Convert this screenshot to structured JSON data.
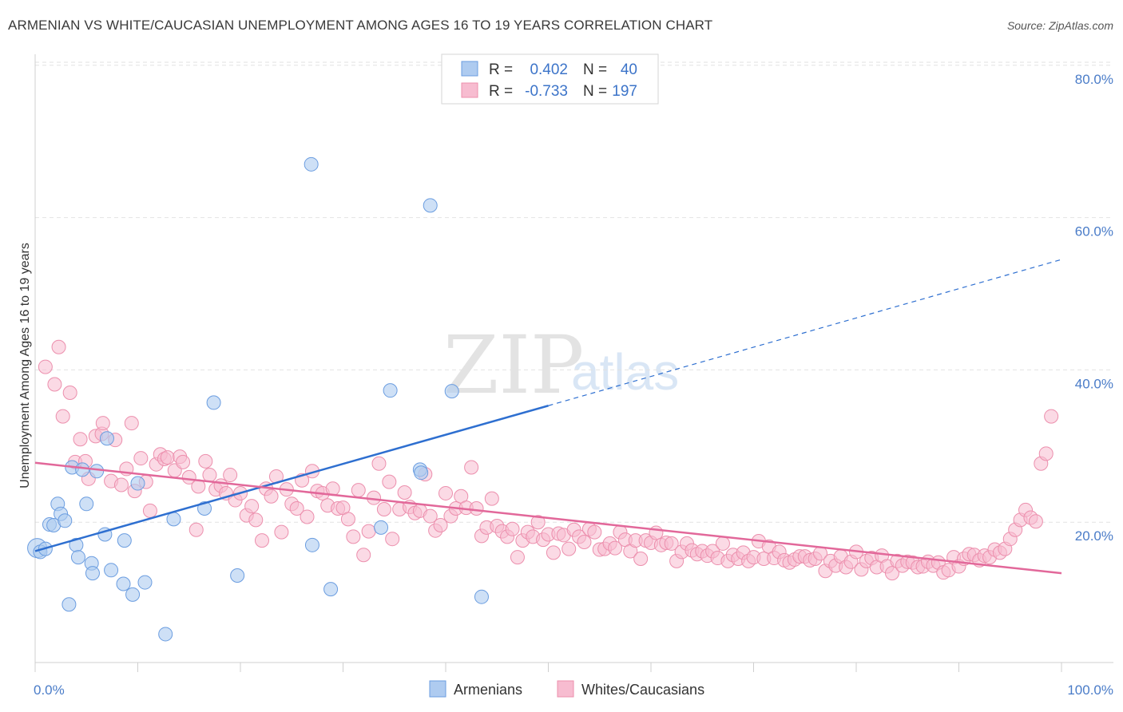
{
  "title": "ARMENIAN VS WHITE/CAUCASIAN UNEMPLOYMENT AMONG AGES 16 TO 19 YEARS CORRELATION CHART",
  "source": "Source: ZipAtlas.com",
  "watermark": {
    "zip": "ZIP",
    "atlas": "atlas"
  },
  "legend": {
    "r_label": "R =",
    "n_label": "N =",
    "armenians": {
      "r": "0.402",
      "n": "40"
    },
    "whites": {
      "r": "-0.733",
      "n": "197"
    }
  },
  "bottom_legend": {
    "armenians": "Armenians",
    "whites": "Whites/Caucasians"
  },
  "colors": {
    "armenians_fill": "#aecbf0",
    "armenians_stroke": "#6b9de0",
    "armenians_line": "#2e6fd0",
    "whites_fill": "#f7bcd0",
    "whites_stroke": "#ec8fad",
    "whites_line": "#e2689a",
    "tick_text": "#4a7cc8",
    "grid": "#e2e2e2"
  },
  "chart_data": {
    "type": "scatter",
    "title": "ARMENIAN VS WHITE/CAUCASIAN UNEMPLOYMENT AMONG AGES 16 TO 19 YEARS CORRELATION CHART",
    "xlabel": "",
    "ylabel": "Unemployment Among Ages 16 to 19 years",
    "xlim": [
      0,
      100
    ],
    "ylim": [
      0,
      85
    ],
    "x_tick_labels": [
      "0.0%",
      "100.0%"
    ],
    "y_ticks": [
      20,
      40,
      60,
      80
    ],
    "y_tick_labels": [
      "20.0%",
      "40.0%",
      "60.0%",
      "80.0%"
    ],
    "grid": true,
    "legend_placement": "top-center",
    "series": [
      {
        "name": "Armenians",
        "r": 0.402,
        "n": 40,
        "trend": {
          "x0": 0,
          "y0": 16.2,
          "x1": 50,
          "y1": 35.3,
          "dashed_to_x": 100,
          "dashed_to_y": 54.5
        },
        "points": [
          [
            0.2,
            16.6
          ],
          [
            0.5,
            16.1
          ],
          [
            1.0,
            16.5
          ],
          [
            1.4,
            19.7
          ],
          [
            1.8,
            19.6
          ],
          [
            2.2,
            22.4
          ],
          [
            2.5,
            21.1
          ],
          [
            2.9,
            20.2
          ],
          [
            3.3,
            9.2
          ],
          [
            3.6,
            27.2
          ],
          [
            4.0,
            17.0
          ],
          [
            4.2,
            15.4
          ],
          [
            4.6,
            26.9
          ],
          [
            5.0,
            22.4
          ],
          [
            5.5,
            14.6
          ],
          [
            5.6,
            13.3
          ],
          [
            6.0,
            26.7
          ],
          [
            6.8,
            18.4
          ],
          [
            7.0,
            31.0
          ],
          [
            7.4,
            13.7
          ],
          [
            8.6,
            11.9
          ],
          [
            8.7,
            17.6
          ],
          [
            9.5,
            10.5
          ],
          [
            10.0,
            25.1
          ],
          [
            10.7,
            12.1
          ],
          [
            12.7,
            5.3
          ],
          [
            13.5,
            20.4
          ],
          [
            16.5,
            21.8
          ],
          [
            17.4,
            35.7
          ],
          [
            19.7,
            13.0
          ],
          [
            26.9,
            67.0
          ],
          [
            27.0,
            17.0
          ],
          [
            28.8,
            11.2
          ],
          [
            33.7,
            19.3
          ],
          [
            34.6,
            37.3
          ],
          [
            37.5,
            26.9
          ],
          [
            37.6,
            26.5
          ],
          [
            38.5,
            61.6
          ],
          [
            40.6,
            37.2
          ],
          [
            43.5,
            10.2
          ]
        ]
      },
      {
        "name": "Whites/Caucasians",
        "r": -0.733,
        "n": 197,
        "trend": {
          "x0": 0,
          "y0": 27.8,
          "x1": 100,
          "y1": 13.3
        },
        "points": [
          [
            1.0,
            40.4
          ],
          [
            1.9,
            38.1
          ],
          [
            2.3,
            43.0
          ],
          [
            2.7,
            33.9
          ],
          [
            3.4,
            37.0
          ],
          [
            3.9,
            27.9
          ],
          [
            4.4,
            30.9
          ],
          [
            4.9,
            28.0
          ],
          [
            5.2,
            25.7
          ],
          [
            5.9,
            31.3
          ],
          [
            6.5,
            31.6
          ],
          [
            6.6,
            33.0
          ],
          [
            7.4,
            25.4
          ],
          [
            7.8,
            30.8
          ],
          [
            8.4,
            24.9
          ],
          [
            8.9,
            27.0
          ],
          [
            9.4,
            33.0
          ],
          [
            9.7,
            24.1
          ],
          [
            10.3,
            28.4
          ],
          [
            10.8,
            25.3
          ],
          [
            11.2,
            21.5
          ],
          [
            11.8,
            27.6
          ],
          [
            12.2,
            28.9
          ],
          [
            12.6,
            28.3
          ],
          [
            12.9,
            28.5
          ],
          [
            13.6,
            26.8
          ],
          [
            14.1,
            28.6
          ],
          [
            14.4,
            27.9
          ],
          [
            15.0,
            25.9
          ],
          [
            15.7,
            19.0
          ],
          [
            15.9,
            24.7
          ],
          [
            16.6,
            28.0
          ],
          [
            17.0,
            26.2
          ],
          [
            17.6,
            24.3
          ],
          [
            18.1,
            24.8
          ],
          [
            18.6,
            23.8
          ],
          [
            19.0,
            26.2
          ],
          [
            19.5,
            22.9
          ],
          [
            20.0,
            23.8
          ],
          [
            20.6,
            20.9
          ],
          [
            21.1,
            22.1
          ],
          [
            21.5,
            20.3
          ],
          [
            22.1,
            17.6
          ],
          [
            22.5,
            24.4
          ],
          [
            23.0,
            23.4
          ],
          [
            23.5,
            26.0
          ],
          [
            24.0,
            18.7
          ],
          [
            24.5,
            24.3
          ],
          [
            25.0,
            22.4
          ],
          [
            25.5,
            21.8
          ],
          [
            26.0,
            25.5
          ],
          [
            26.5,
            20.7
          ],
          [
            27.0,
            26.7
          ],
          [
            27.5,
            24.1
          ],
          [
            28.0,
            23.8
          ],
          [
            28.5,
            22.2
          ],
          [
            29.0,
            24.4
          ],
          [
            29.5,
            21.8
          ],
          [
            30.0,
            21.9
          ],
          [
            30.5,
            20.4
          ],
          [
            31.0,
            18.1
          ],
          [
            31.5,
            24.2
          ],
          [
            32.0,
            15.7
          ],
          [
            32.5,
            18.8
          ],
          [
            33.0,
            23.2
          ],
          [
            33.5,
            27.7
          ],
          [
            34.0,
            21.7
          ],
          [
            34.5,
            25.3
          ],
          [
            34.8,
            17.8
          ],
          [
            35.5,
            21.7
          ],
          [
            36.0,
            23.9
          ],
          [
            36.5,
            22.0
          ],
          [
            37.0,
            21.2
          ],
          [
            37.5,
            21.5
          ],
          [
            38.0,
            26.3
          ],
          [
            38.5,
            20.8
          ],
          [
            39.0,
            18.9
          ],
          [
            39.5,
            19.6
          ],
          [
            40.0,
            23.8
          ],
          [
            40.5,
            20.8
          ],
          [
            41.0,
            21.8
          ],
          [
            41.5,
            23.4
          ],
          [
            42.0,
            21.9
          ],
          [
            42.5,
            27.2
          ],
          [
            43.0,
            21.8
          ],
          [
            43.5,
            18.2
          ],
          [
            44.0,
            19.3
          ],
          [
            44.5,
            23.1
          ],
          [
            45.0,
            19.5
          ],
          [
            45.5,
            18.8
          ],
          [
            46.0,
            18.1
          ],
          [
            46.5,
            19.1
          ],
          [
            47.0,
            15.4
          ],
          [
            47.5,
            17.6
          ],
          [
            48.0,
            18.7
          ],
          [
            48.5,
            18.1
          ],
          [
            49.0,
            20.0
          ],
          [
            49.5,
            17.7
          ],
          [
            50.0,
            18.4
          ],
          [
            50.5,
            16.0
          ],
          [
            51.0,
            18.5
          ],
          [
            51.5,
            18.3
          ],
          [
            52.0,
            16.5
          ],
          [
            52.5,
            19.0
          ],
          [
            53.0,
            18.1
          ],
          [
            53.5,
            17.4
          ],
          [
            54.0,
            19.1
          ],
          [
            54.5,
            18.7
          ],
          [
            55.0,
            16.4
          ],
          [
            55.5,
            16.5
          ],
          [
            56.0,
            17.2
          ],
          [
            56.5,
            16.6
          ],
          [
            57.0,
            18.7
          ],
          [
            57.5,
            17.7
          ],
          [
            58.0,
            16.2
          ],
          [
            58.5,
            17.6
          ],
          [
            59.0,
            15.2
          ],
          [
            59.5,
            17.6
          ],
          [
            60.0,
            17.3
          ],
          [
            60.5,
            18.6
          ],
          [
            61.0,
            17.0
          ],
          [
            61.5,
            17.3
          ],
          [
            62.0,
            17.2
          ],
          [
            62.5,
            14.9
          ],
          [
            63.0,
            16.1
          ],
          [
            63.5,
            17.2
          ],
          [
            64.0,
            16.3
          ],
          [
            64.5,
            15.8
          ],
          [
            65.0,
            16.2
          ],
          [
            65.5,
            15.6
          ],
          [
            66.0,
            16.2
          ],
          [
            66.5,
            15.3
          ],
          [
            67.0,
            17.2
          ],
          [
            67.5,
            14.9
          ],
          [
            68.0,
            15.7
          ],
          [
            68.5,
            15.2
          ],
          [
            69.0,
            16.0
          ],
          [
            69.5,
            14.9
          ],
          [
            70.0,
            15.4
          ],
          [
            70.5,
            17.5
          ],
          [
            71.0,
            15.2
          ],
          [
            71.5,
            16.8
          ],
          [
            72.0,
            15.3
          ],
          [
            72.5,
            16.1
          ],
          [
            73.0,
            15.0
          ],
          [
            73.5,
            14.7
          ],
          [
            74.0,
            15.1
          ],
          [
            74.5,
            15.5
          ],
          [
            75.0,
            15.5
          ],
          [
            75.5,
            15.0
          ],
          [
            76.0,
            15.2
          ],
          [
            76.5,
            15.9
          ],
          [
            77.0,
            13.6
          ],
          [
            77.5,
            14.9
          ],
          [
            78.0,
            14.3
          ],
          [
            78.5,
            15.5
          ],
          [
            79.0,
            14.1
          ],
          [
            79.5,
            14.8
          ],
          [
            80.0,
            16.1
          ],
          [
            80.5,
            13.8
          ],
          [
            81.0,
            14.9
          ],
          [
            81.5,
            15.3
          ],
          [
            82.0,
            14.1
          ],
          [
            82.5,
            15.6
          ],
          [
            83.0,
            14.2
          ],
          [
            83.5,
            13.3
          ],
          [
            84.0,
            14.9
          ],
          [
            84.5,
            14.3
          ],
          [
            85.0,
            14.8
          ],
          [
            85.5,
            14.7
          ],
          [
            86.0,
            14.1
          ],
          [
            86.5,
            14.2
          ],
          [
            87.0,
            14.8
          ],
          [
            87.5,
            14.3
          ],
          [
            88.0,
            14.7
          ],
          [
            88.5,
            13.4
          ],
          [
            89.0,
            13.7
          ],
          [
            89.5,
            15.4
          ],
          [
            90.0,
            14.2
          ],
          [
            90.5,
            15.2
          ],
          [
            91.0,
            15.8
          ],
          [
            91.5,
            15.7
          ],
          [
            92.0,
            15.0
          ],
          [
            92.5,
            15.6
          ],
          [
            93.0,
            15.4
          ],
          [
            93.5,
            16.4
          ],
          [
            94.0,
            16.0
          ],
          [
            94.5,
            16.5
          ],
          [
            95.0,
            17.8
          ],
          [
            95.5,
            19.0
          ],
          [
            96.0,
            20.3
          ],
          [
            96.5,
            21.6
          ],
          [
            97.0,
            20.6
          ],
          [
            97.5,
            20.1
          ],
          [
            98.0,
            27.7
          ],
          [
            98.5,
            29.0
          ],
          [
            99.0,
            33.9
          ]
        ]
      }
    ]
  }
}
